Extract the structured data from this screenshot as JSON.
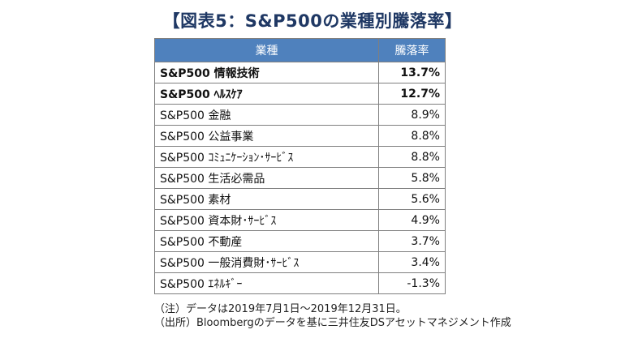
{
  "title": "【図表5：S&P500の業種別騰落率】",
  "chart_data": {
    "type": "table",
    "columns": [
      "業種",
      "騰落率"
    ],
    "rows": [
      {
        "sector": "S&P500 情報技術",
        "value": "13.7%",
        "bold": true
      },
      {
        "sector": "S&P500 ﾍﾙｽｹｱ",
        "value": "12.7%",
        "bold": true
      },
      {
        "sector": "S&P500 金融",
        "value": "8.9%",
        "bold": false
      },
      {
        "sector": "S&P500 公益事業",
        "value": "8.8%",
        "bold": false
      },
      {
        "sector": "S&P500 ｺﾐｭﾆｹｰｼｮﾝ･ｻｰﾋﾞｽ",
        "value": "8.8%",
        "bold": false
      },
      {
        "sector": "S&P500 生活必需品",
        "value": "5.8%",
        "bold": false
      },
      {
        "sector": "S&P500 素材",
        "value": "5.6%",
        "bold": false
      },
      {
        "sector": "S&P500 資本財･ｻｰﾋﾞｽ",
        "value": "4.9%",
        "bold": false
      },
      {
        "sector": "S&P500 不動産",
        "value": "3.7%",
        "bold": false
      },
      {
        "sector": "S&P500 一般消費財･ｻｰﾋﾞｽ",
        "value": "3.4%",
        "bold": false
      },
      {
        "sector": "S&P500 ｴﾈﾙｷﾞｰ",
        "value": "-1.3%",
        "bold": false
      }
    ]
  },
  "notes": [
    "（注）データは2019年7月1日～2019年12月31日。",
    "（出所）Bloombergのデータを基に三井住友DSアセットマネジメント作成"
  ],
  "colors": {
    "title": "#1f3864",
    "header_bg": "#4f81bd",
    "border": "#7f7f7f"
  }
}
